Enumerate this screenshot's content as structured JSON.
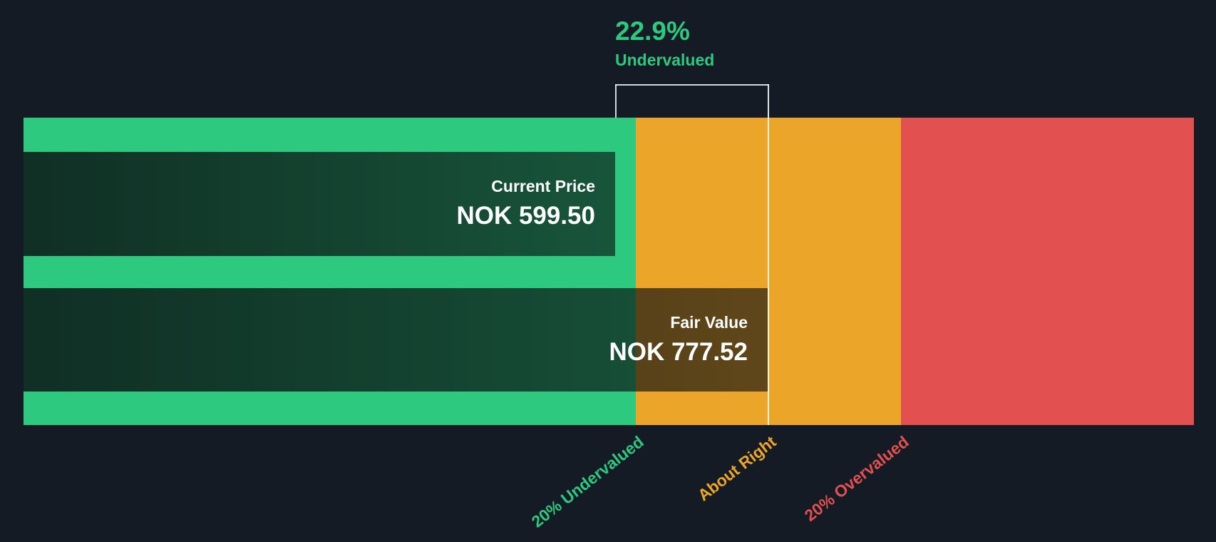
{
  "colors": {
    "background": "#151b24",
    "green": "#2dc97e",
    "amber": "#eba528",
    "red": "#e25050",
    "marker_line": "#ffffff",
    "bar_text": "#ffffff"
  },
  "chart_data": {
    "type": "bar",
    "orientation": "horizontal",
    "annotation": {
      "percent": "22.9%",
      "label": "Undervalued",
      "color": "#2dc97e"
    },
    "bars": [
      {
        "name": "Current Price",
        "value": 599.5,
        "unit": "NOK",
        "display_value": "NOK 599.50"
      },
      {
        "name": "Fair Value",
        "value": 777.52,
        "unit": "NOK",
        "display_value": "NOK 777.52"
      }
    ],
    "zones": [
      {
        "label": "20% Undervalued",
        "color": "#2dc97e"
      },
      {
        "label": "About Right",
        "color": "#eba528"
      },
      {
        "label": "20% Overvalued",
        "color": "#e25050"
      }
    ]
  }
}
